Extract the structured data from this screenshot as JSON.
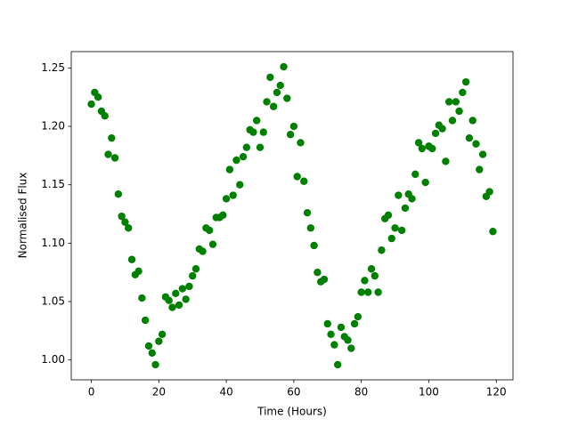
{
  "chart_data": {
    "type": "scatter",
    "xlabel": "Time (Hours)",
    "ylabel": "Normalised Flux",
    "color": "#008000",
    "grid": false,
    "x": [
      0,
      1,
      2,
      3,
      4,
      5,
      6,
      7,
      8,
      9,
      10,
      11,
      12,
      13,
      14,
      15,
      16,
      17,
      18,
      19,
      20,
      21,
      22,
      23,
      24,
      25,
      26,
      27,
      28,
      29,
      30,
      31,
      32,
      33,
      34,
      35,
      36,
      37,
      38,
      39,
      40,
      41,
      42,
      43,
      44,
      45,
      46,
      47,
      48,
      49,
      50,
      51,
      52,
      53,
      54,
      55,
      56,
      57,
      58,
      59,
      60,
      61,
      62,
      63,
      64,
      65,
      66,
      67,
      68,
      69,
      70,
      71,
      72,
      73,
      74,
      75,
      76,
      77,
      78,
      79,
      80,
      81,
      82,
      83,
      84,
      85,
      86,
      87,
      88,
      89,
      90,
      91,
      92,
      93,
      94,
      95,
      96,
      97,
      98,
      99,
      100,
      101,
      102,
      103,
      104,
      105,
      106,
      107,
      108,
      109,
      110,
      111,
      112,
      113,
      114,
      115,
      116,
      117,
      118,
      119
    ],
    "values": [
      1.219,
      1.229,
      1.225,
      1.213,
      1.209,
      1.176,
      1.19,
      1.173,
      1.142,
      1.123,
      1.118,
      1.113,
      1.086,
      1.073,
      1.076,
      1.053,
      1.034,
      1.012,
      1.006,
      0.996,
      1.016,
      1.022,
      1.054,
      1.051,
      1.045,
      1.057,
      1.047,
      1.061,
      1.052,
      1.063,
      1.072,
      1.078,
      1.095,
      1.093,
      1.113,
      1.111,
      1.099,
      1.122,
      1.122,
      1.124,
      1.138,
      1.163,
      1.141,
      1.171,
      1.15,
      1.174,
      1.182,
      1.197,
      1.195,
      1.205,
      1.182,
      1.195,
      1.221,
      1.242,
      1.217,
      1.229,
      1.235,
      1.251,
      1.224,
      1.193,
      1.2,
      1.157,
      1.186,
      1.153,
      1.126,
      1.113,
      1.098,
      1.075,
      1.067,
      1.069,
      1.031,
      1.022,
      1.013,
      0.996,
      1.028,
      1.02,
      1.017,
      1.01,
      1.031,
      1.037,
      1.058,
      1.068,
      1.058,
      1.078,
      1.072,
      1.058,
      1.094,
      1.121,
      1.124,
      1.104,
      1.113,
      1.141,
      1.111,
      1.13,
      1.142,
      1.138,
      1.159,
      1.186,
      1.181,
      1.152,
      1.183,
      1.181,
      1.194,
      1.201,
      1.198,
      1.17,
      1.221,
      1.205,
      1.221,
      1.213,
      1.229,
      1.238,
      1.19,
      1.205,
      1.185,
      1.163,
      1.176,
      1.14,
      1.144,
      1.11
    ],
    "xlim": [
      -5.95,
      124.95
    ],
    "ylim": [
      0.983,
      1.264
    ],
    "xticks": [
      0,
      20,
      40,
      60,
      80,
      100,
      120
    ],
    "yticks": [
      {
        "value": 1.0,
        "label": "1.00"
      },
      1.05,
      {
        "value": 1.1,
        "label": "1.10"
      },
      1.15,
      {
        "value": 1.2,
        "label": "1.20"
      },
      1.25
    ]
  }
}
